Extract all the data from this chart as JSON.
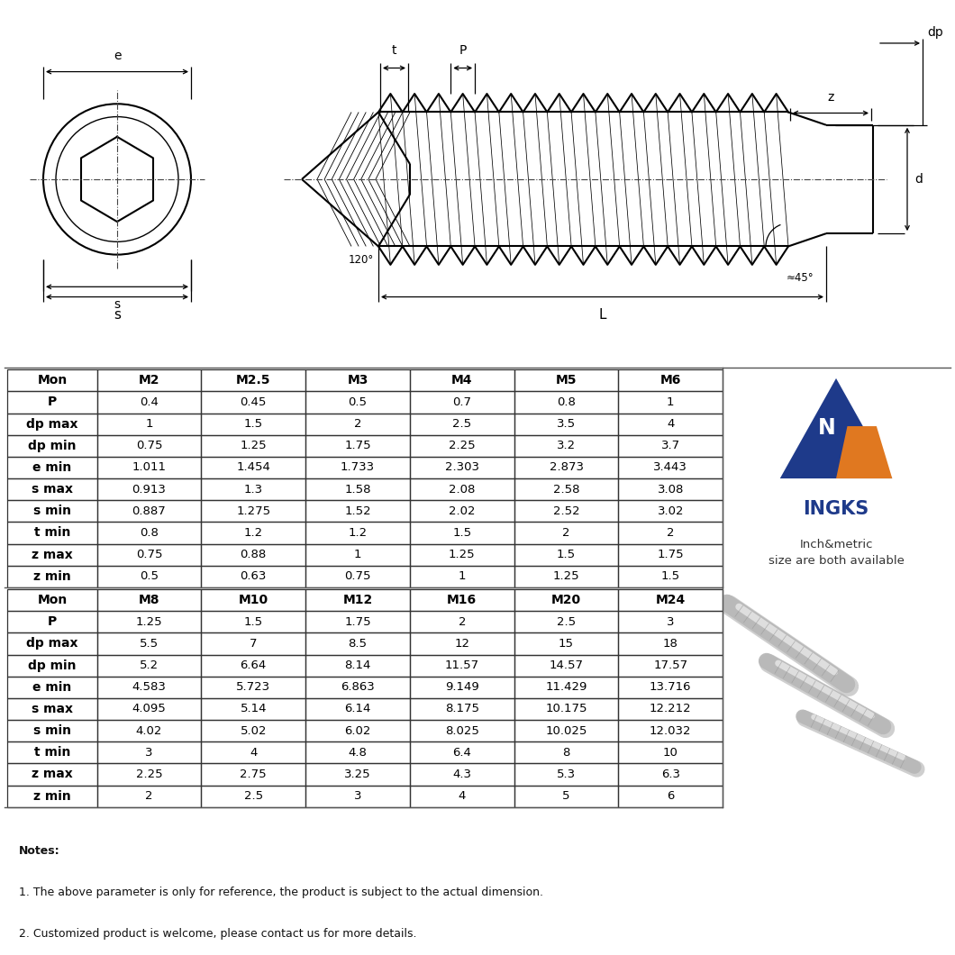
{
  "table1_headers": [
    "Mon",
    "M2",
    "M2.5",
    "M3",
    "M4",
    "M5",
    "M6"
  ],
  "table1_rows": [
    [
      "P",
      "0.4",
      "0.45",
      "0.5",
      "0.7",
      "0.8",
      "1"
    ],
    [
      "dp max",
      "1",
      "1.5",
      "2",
      "2.5",
      "3.5",
      "4"
    ],
    [
      "dp min",
      "0.75",
      "1.25",
      "1.75",
      "2.25",
      "3.2",
      "3.7"
    ],
    [
      "e min",
      "1.011",
      "1.454",
      "1.733",
      "2.303",
      "2.873",
      "3.443"
    ],
    [
      "s max",
      "0.913",
      "1.3",
      "1.58",
      "2.08",
      "2.58",
      "3.08"
    ],
    [
      "s min",
      "0.887",
      "1.275",
      "1.52",
      "2.02",
      "2.52",
      "3.02"
    ],
    [
      "t min",
      "0.8",
      "1.2",
      "1.2",
      "1.5",
      "2",
      "2"
    ],
    [
      "z max",
      "0.75",
      "0.88",
      "1",
      "1.25",
      "1.5",
      "1.75"
    ],
    [
      "z min",
      "0.5",
      "0.63",
      "0.75",
      "1",
      "1.25",
      "1.5"
    ]
  ],
  "table2_headers": [
    "Mon",
    "M8",
    "M10",
    "M12",
    "M16",
    "M20",
    "M24"
  ],
  "table2_rows": [
    [
      "P",
      "1.25",
      "1.5",
      "1.75",
      "2",
      "2.5",
      "3"
    ],
    [
      "dp max",
      "5.5",
      "7",
      "8.5",
      "12",
      "15",
      "18"
    ],
    [
      "dp min",
      "5.2",
      "6.64",
      "8.14",
      "11.57",
      "14.57",
      "17.57"
    ],
    [
      "e min",
      "4.583",
      "5.723",
      "6.863",
      "9.149",
      "11.429",
      "13.716"
    ],
    [
      "s max",
      "4.095",
      "5.14",
      "6.14",
      "8.175",
      "10.175",
      "12.212"
    ],
    [
      "s min",
      "4.02",
      "5.02",
      "6.02",
      "8.025",
      "10.025",
      "12.032"
    ],
    [
      "t min",
      "3",
      "4",
      "4.8",
      "6.4",
      "8",
      "10"
    ],
    [
      "z max",
      "2.25",
      "2.75",
      "3.25",
      "4.3",
      "5.3",
      "6.3"
    ],
    [
      "z min",
      "2",
      "2.5",
      "3",
      "4",
      "5",
      "6"
    ]
  ],
  "notes": [
    "Notes:",
    "1. The above parameter is only for reference, the product is subject to the actual dimension.",
    "2. Customized product is welcome, please contact us for more details."
  ],
  "brand_name": "INGKS",
  "brand_tagline": "Inch&metric\nsize are both available",
  "bg_color": "#ffffff",
  "header_color": "#000000",
  "header_bold": true,
  "firstcol_bold": true,
  "data_color": "#000000"
}
